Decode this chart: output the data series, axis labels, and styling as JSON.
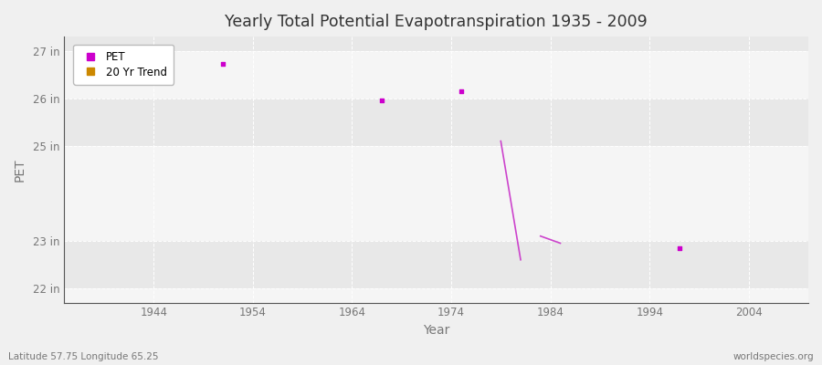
{
  "title": "Yearly Total Potential Evapotranspiration 1935 - 2009",
  "xlabel": "Year",
  "ylabel": "PET",
  "subtitle_left": "Latitude 57.75 Longitude 65.25",
  "subtitle_right": "worldspecies.org",
  "xlim": [
    1935,
    2010
  ],
  "ylim": [
    21.7,
    27.3
  ],
  "yticks": [
    22,
    23,
    25,
    26,
    27
  ],
  "ytick_labels": [
    "22 in",
    "23 in",
    "25 in",
    "26 in",
    "27 in"
  ],
  "xticks": [
    1944,
    1954,
    1964,
    1974,
    1984,
    1994,
    2004
  ],
  "background_color": "#f0f0f0",
  "plot_bg_color": "#f0f0f0",
  "band_color_light": "#f5f5f5",
  "band_color_dark": "#e8e8e8",
  "grid_color": "#ffffff",
  "pet_color": "#cc00cc",
  "trend_color": "#cc44cc",
  "pet_points": [
    [
      1951,
      26.72
    ],
    [
      1967,
      25.95
    ],
    [
      1975,
      26.15
    ],
    [
      1997,
      22.85
    ]
  ],
  "trend_segments": [
    [
      [
        1979,
        25.1
      ],
      [
        1981,
        22.6
      ]
    ],
    [
      [
        1983,
        23.1
      ],
      [
        1985,
        22.95
      ]
    ]
  ],
  "legend_pet_label": "PET",
  "legend_trend_label": "20 Yr Trend",
  "legend_pet_color": "#cc00cc",
  "legend_trend_color": "#cc8800",
  "spine_color": "#555555",
  "tick_label_color": "#777777"
}
